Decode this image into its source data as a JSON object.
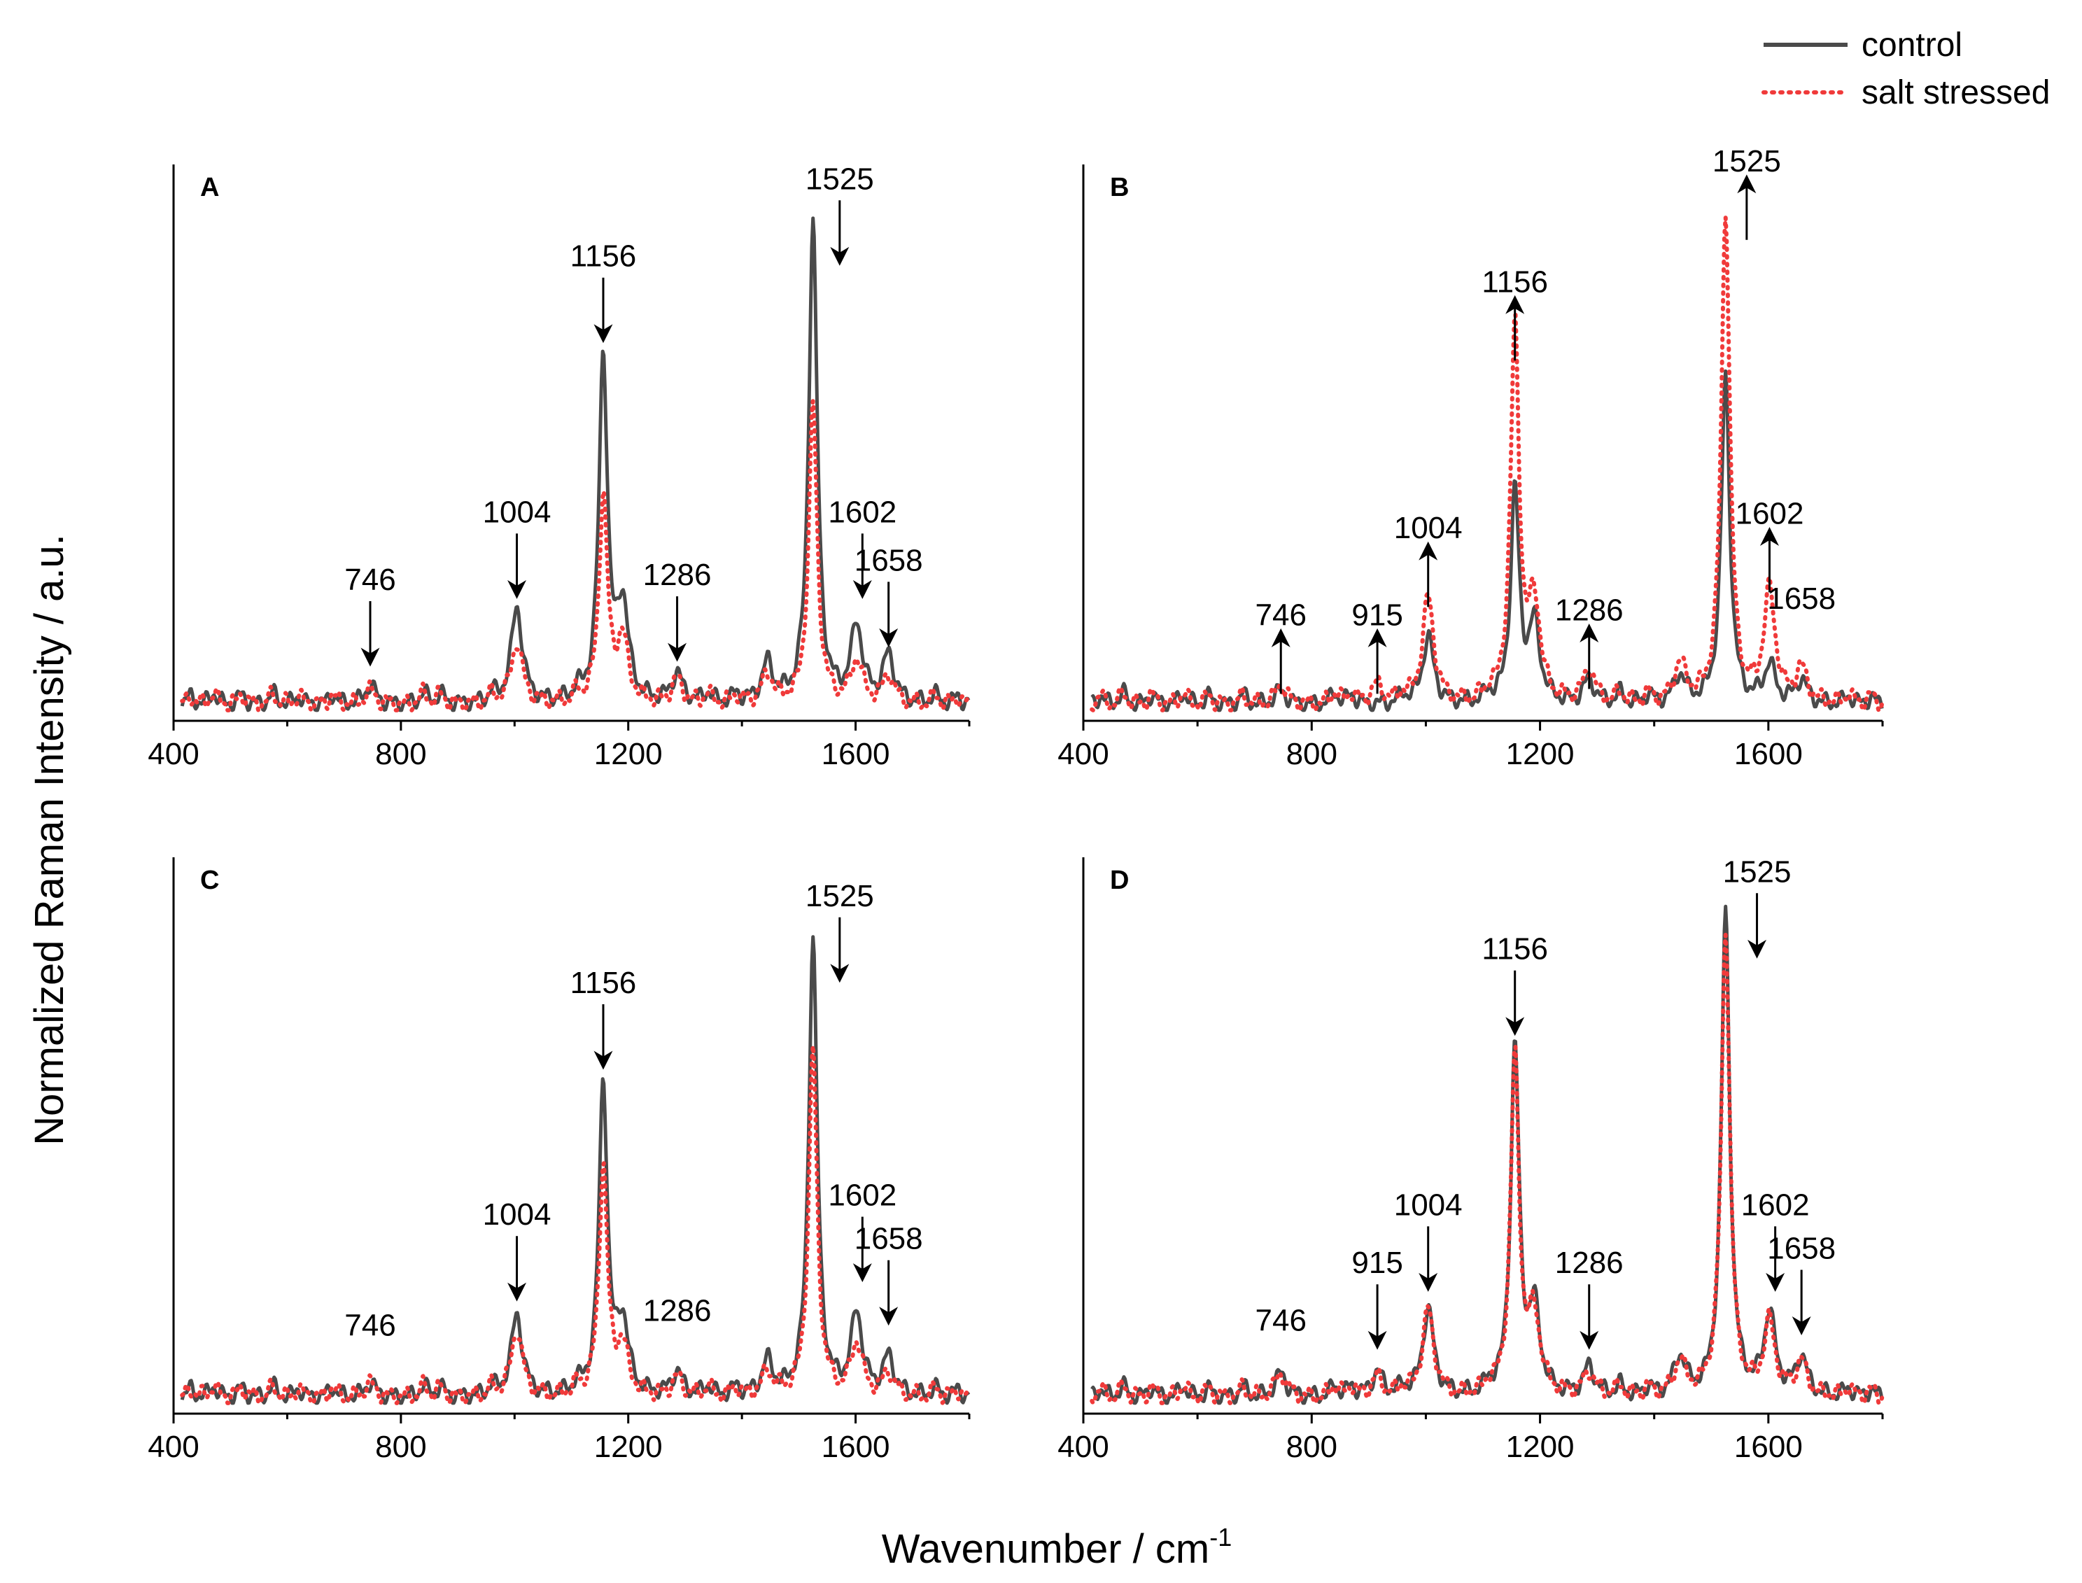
{
  "chart_data": {
    "type": "line",
    "ylabel": "Normalized Raman Intensity / a.u.",
    "xlabel_main": "Wavenumber / cm",
    "xlabel_sup": "-1",
    "xlim": [
      400,
      1800
    ],
    "xticks": [
      400,
      800,
      1200,
      1600
    ],
    "legend": [
      {
        "name": "control",
        "color": "#4a4a4a",
        "style": "solid"
      },
      {
        "name": "salt stressed",
        "color": "#f03a3a",
        "style": "dotted"
      }
    ],
    "panels": [
      {
        "letter": "A",
        "series": [
          {
            "name": "control",
            "peaks": [
              [
                746,
                0.04
              ],
              [
                1004,
                0.2
              ],
              [
                1156,
                0.72
              ],
              [
                1190,
                0.2
              ],
              [
                1286,
                0.06
              ],
              [
                1445,
                0.08
              ],
              [
                1525,
                1.0
              ],
              [
                1602,
                0.16
              ],
              [
                1658,
                0.1
              ]
            ]
          },
          {
            "name": "salt stressed",
            "peaks": [
              [
                746,
                0.03
              ],
              [
                1004,
                0.13
              ],
              [
                1156,
                0.43
              ],
              [
                1190,
                0.13
              ],
              [
                1286,
                0.05
              ],
              [
                1445,
                0.06
              ],
              [
                1525,
                0.62
              ],
              [
                1602,
                0.09
              ],
              [
                1658,
                0.06
              ]
            ]
          }
        ],
        "annotations": [
          {
            "label": "746",
            "x": 746,
            "dir": "down",
            "level": 0.1
          },
          {
            "label": "1004",
            "x": 1004,
            "dir": "down",
            "level": 0.24
          },
          {
            "label": "1156",
            "x": 1156,
            "dir": "down",
            "level": 0.77
          },
          {
            "label": "1286",
            "x": 1286,
            "dir": "down",
            "level": 0.11
          },
          {
            "label": "1525",
            "x": 1572,
            "dir": "down",
            "level": 0.93
          },
          {
            "label": "1602",
            "x": 1612,
            "dir": "down",
            "level": 0.24
          },
          {
            "label": "1658",
            "x": 1658,
            "dir": "down",
            "level": 0.14
          }
        ]
      },
      {
        "letter": "B",
        "series": [
          {
            "name": "control",
            "peaks": [
              [
                746,
                0.03
              ],
              [
                1004,
                0.14
              ],
              [
                1156,
                0.44
              ],
              [
                1190,
                0.16
              ],
              [
                1286,
                0.05
              ],
              [
                1445,
                0.06
              ],
              [
                1525,
                0.68
              ],
              [
                1602,
                0.08
              ],
              [
                1658,
                0.05
              ]
            ]
          },
          {
            "name": "salt stressed",
            "peaks": [
              [
                746,
                0.04
              ],
              [
                915,
                0.04
              ],
              [
                1004,
                0.22
              ],
              [
                1156,
                0.78
              ],
              [
                1190,
                0.2
              ],
              [
                1286,
                0.07
              ],
              [
                1445,
                0.08
              ],
              [
                1525,
                1.02
              ],
              [
                1602,
                0.23
              ],
              [
                1658,
                0.07
              ]
            ]
          }
        ],
        "annotations": [
          {
            "label": "746",
            "x": 746,
            "dir": "up",
            "level": 0.14
          },
          {
            "label": "915",
            "x": 915,
            "dir": "up",
            "level": 0.14
          },
          {
            "label": "1004",
            "x": 1004,
            "dir": "up",
            "level": 0.32
          },
          {
            "label": "1156",
            "x": 1156,
            "dir": "up",
            "level": 0.83
          },
          {
            "label": "1286",
            "x": 1286,
            "dir": "up",
            "level": 0.15
          },
          {
            "label": "1525",
            "x": 1562,
            "dir": "up",
            "level": 1.08
          },
          {
            "label": "1602",
            "x": 1602,
            "dir": "up",
            "level": 0.35
          },
          {
            "label": "1658",
            "x": 1658,
            "dir": "none",
            "level": 0.2
          }
        ]
      },
      {
        "letter": "C",
        "series": [
          {
            "name": "control",
            "peaks": [
              [
                746,
                0.03
              ],
              [
                1004,
                0.17
              ],
              [
                1156,
                0.65
              ],
              [
                1190,
                0.15
              ],
              [
                1286,
                0.05
              ],
              [
                1445,
                0.07
              ],
              [
                1525,
                0.95
              ],
              [
                1602,
                0.17
              ],
              [
                1658,
                0.08
              ]
            ]
          },
          {
            "name": "salt stressed",
            "peaks": [
              [
                746,
                0.03
              ],
              [
                1004,
                0.14
              ],
              [
                1156,
                0.48
              ],
              [
                1190,
                0.1
              ],
              [
                1286,
                0.04
              ],
              [
                1445,
                0.05
              ],
              [
                1525,
                0.72
              ],
              [
                1602,
                0.11
              ],
              [
                1658,
                0.05
              ]
            ]
          }
        ],
        "annotations": [
          {
            "label": "746",
            "x": 746,
            "dir": "none",
            "level": 0.13
          },
          {
            "label": "1004",
            "x": 1004,
            "dir": "down",
            "level": 0.22
          },
          {
            "label": "1156",
            "x": 1156,
            "dir": "down",
            "level": 0.7
          },
          {
            "label": "1286",
            "x": 1286,
            "dir": "none",
            "level": 0.16
          },
          {
            "label": "1525",
            "x": 1572,
            "dir": "down",
            "level": 0.88
          },
          {
            "label": "1602",
            "x": 1612,
            "dir": "down",
            "level": 0.26
          },
          {
            "label": "1658",
            "x": 1658,
            "dir": "down",
            "level": 0.17
          }
        ]
      },
      {
        "letter": "D",
        "series": [
          {
            "name": "control",
            "peaks": [
              [
                746,
                0.05
              ],
              [
                915,
                0.05
              ],
              [
                1004,
                0.18
              ],
              [
                1156,
                0.72
              ],
              [
                1190,
                0.17
              ],
              [
                1286,
                0.06
              ],
              [
                1445,
                0.08
              ],
              [
                1525,
                1.0
              ],
              [
                1602,
                0.17
              ],
              [
                1658,
                0.08
              ]
            ]
          },
          {
            "name": "salt stressed",
            "peaks": [
              [
                746,
                0.05
              ],
              [
                915,
                0.04
              ],
              [
                1004,
                0.18
              ],
              [
                1156,
                0.7
              ],
              [
                1190,
                0.16
              ],
              [
                1286,
                0.05
              ],
              [
                1445,
                0.07
              ],
              [
                1525,
                0.97
              ],
              [
                1602,
                0.15
              ],
              [
                1658,
                0.07
              ]
            ]
          }
        ],
        "annotations": [
          {
            "label": "746",
            "x": 746,
            "dir": "none",
            "level": 0.14
          },
          {
            "label": "915",
            "x": 915,
            "dir": "down",
            "level": 0.12
          },
          {
            "label": "1004",
            "x": 1004,
            "dir": "down",
            "level": 0.24
          },
          {
            "label": "1156",
            "x": 1156,
            "dir": "down",
            "level": 0.77
          },
          {
            "label": "1286",
            "x": 1286,
            "dir": "down",
            "level": 0.12
          },
          {
            "label": "1525",
            "x": 1580,
            "dir": "down",
            "level": 0.93
          },
          {
            "label": "1602",
            "x": 1612,
            "dir": "down",
            "level": 0.24
          },
          {
            "label": "1658",
            "x": 1658,
            "dir": "down",
            "level": 0.15
          }
        ]
      }
    ]
  }
}
